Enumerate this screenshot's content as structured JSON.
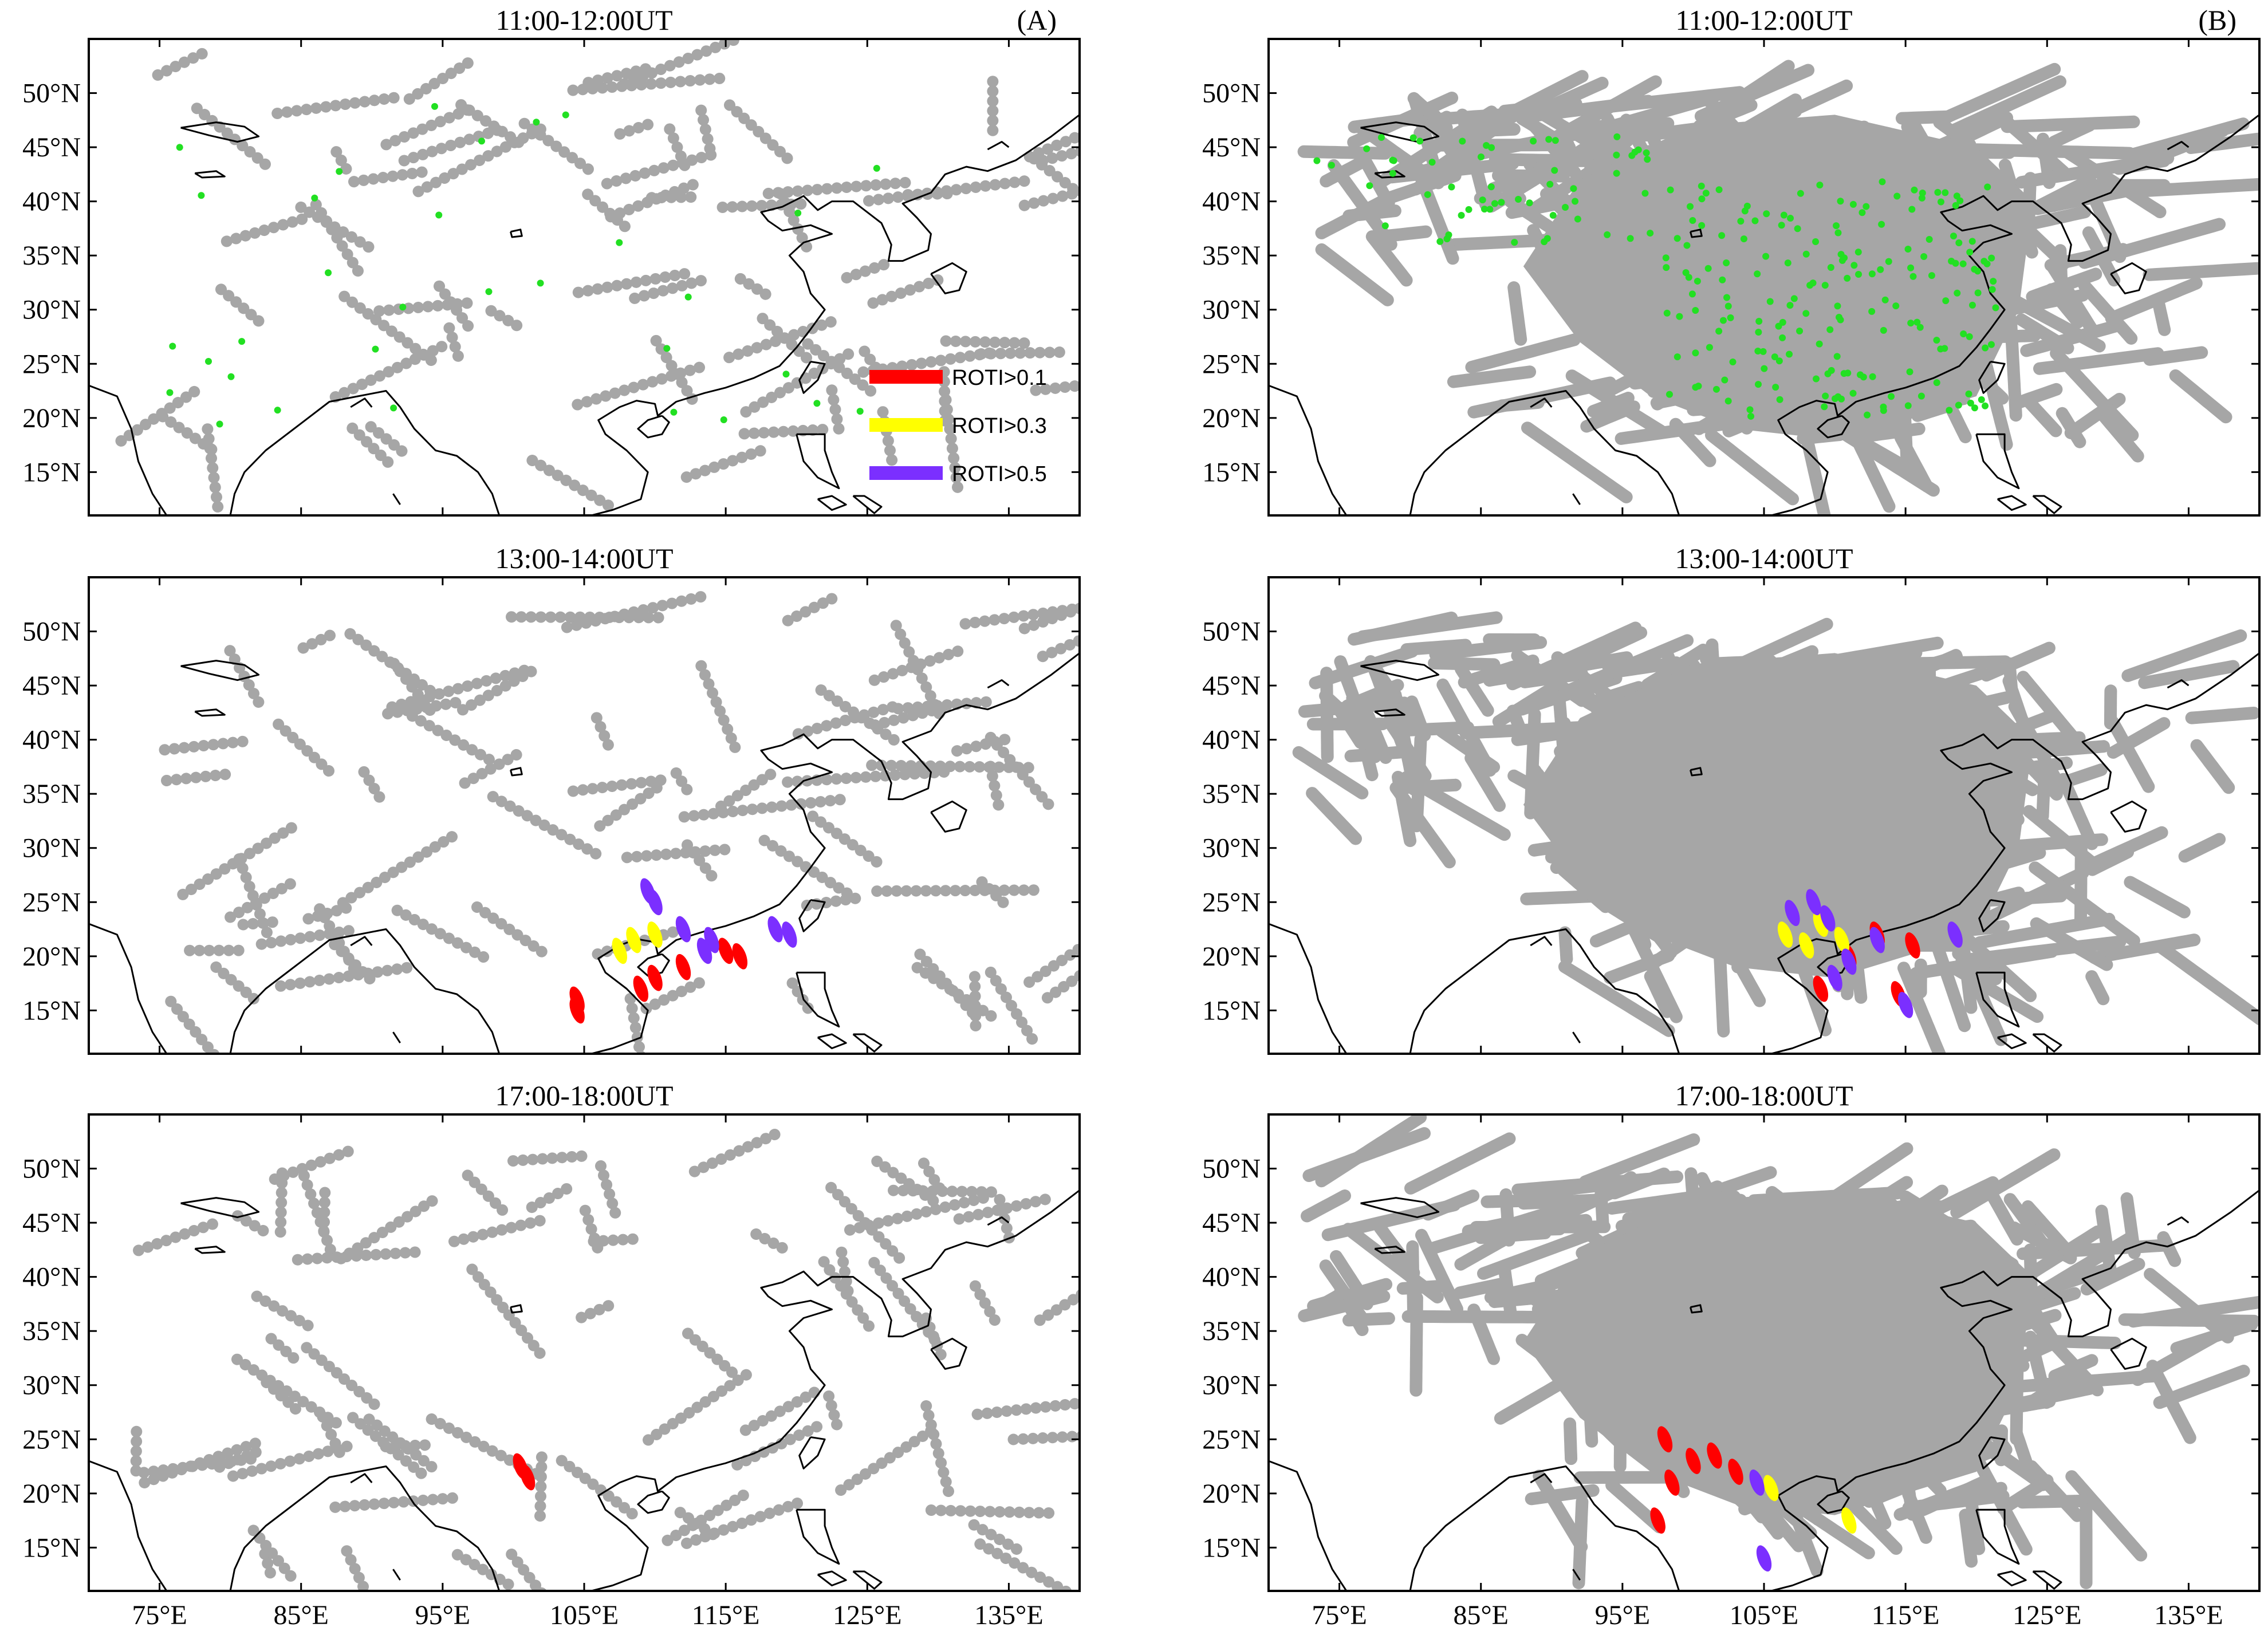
{
  "figure": {
    "panels": [
      {
        "id": "A-1",
        "title": "11:00-12:00UT",
        "letter": "(A)",
        "density": 1,
        "station_count": 32,
        "roti": []
      },
      {
        "id": "B-1",
        "title": "11:00-12:00UT",
        "letter": "(B)",
        "density": 4,
        "station_count": 240,
        "roti": []
      },
      {
        "id": "A-2",
        "title": "13:00-14:00UT",
        "letter": "",
        "density": 1,
        "station_count": 0,
        "roti": [
          {
            "level": "0.1",
            "lon": 104.5,
            "lat": 16
          },
          {
            "level": "0.1",
            "lon": 104.5,
            "lat": 15
          },
          {
            "level": "0.1",
            "lon": 109,
            "lat": 17
          },
          {
            "level": "0.1",
            "lon": 110,
            "lat": 18
          },
          {
            "level": "0.1",
            "lon": 112,
            "lat": 19
          },
          {
            "level": "0.1",
            "lon": 115,
            "lat": 20.5
          },
          {
            "level": "0.1",
            "lon": 116,
            "lat": 20
          },
          {
            "level": "0.3",
            "lon": 107.5,
            "lat": 20.5
          },
          {
            "level": "0.3",
            "lon": 108.5,
            "lat": 21.5
          },
          {
            "level": "0.3",
            "lon": 110,
            "lat": 22
          },
          {
            "level": "0.5",
            "lon": 109.5,
            "lat": 26
          },
          {
            "level": "0.5",
            "lon": 110,
            "lat": 25
          },
          {
            "level": "0.5",
            "lon": 112,
            "lat": 22.5
          },
          {
            "level": "0.5",
            "lon": 114,
            "lat": 21.5
          },
          {
            "level": "0.5",
            "lon": 113.5,
            "lat": 20.5
          },
          {
            "level": "0.5",
            "lon": 118.5,
            "lat": 22.5
          },
          {
            "level": "0.5",
            "lon": 119.5,
            "lat": 22
          }
        ]
      },
      {
        "id": "B-2",
        "title": "13:00-14:00UT",
        "letter": "",
        "density": 4,
        "station_count": 0,
        "roti": [
          {
            "level": "0.1",
            "lon": 114.5,
            "lat": 16.5
          },
          {
            "level": "0.1",
            "lon": 115.5,
            "lat": 21
          },
          {
            "level": "0.1",
            "lon": 109,
            "lat": 17
          },
          {
            "level": "0.1",
            "lon": 111,
            "lat": 20
          },
          {
            "level": "0.1",
            "lon": 113,
            "lat": 22
          },
          {
            "level": "0.3",
            "lon": 106.5,
            "lat": 22
          },
          {
            "level": "0.3",
            "lon": 108,
            "lat": 21
          },
          {
            "level": "0.3",
            "lon": 109,
            "lat": 23
          },
          {
            "level": "0.3",
            "lon": 110.5,
            "lat": 21.5
          },
          {
            "level": "0.5",
            "lon": 107,
            "lat": 24
          },
          {
            "level": "0.5",
            "lon": 108.5,
            "lat": 25
          },
          {
            "level": "0.5",
            "lon": 109.5,
            "lat": 23.5
          },
          {
            "level": "0.5",
            "lon": 110,
            "lat": 18
          },
          {
            "level": "0.5",
            "lon": 111,
            "lat": 19.5
          },
          {
            "level": "0.5",
            "lon": 113,
            "lat": 21.5
          },
          {
            "level": "0.5",
            "lon": 118.5,
            "lat": 22
          },
          {
            "level": "0.5",
            "lon": 115,
            "lat": 15.5
          }
        ]
      },
      {
        "id": "A-3",
        "title": "17:00-18:00UT",
        "letter": "",
        "density": 1,
        "station_count": 0,
        "roti": [
          {
            "level": "0.1",
            "lon": 100.5,
            "lat": 22.5
          },
          {
            "level": "0.1",
            "lon": 101,
            "lat": 21.5
          }
        ]
      },
      {
        "id": "B-3",
        "title": "17:00-18:00UT",
        "letter": "",
        "density": 4,
        "station_count": 0,
        "roti": [
          {
            "level": "0.1",
            "lon": 98,
            "lat": 25
          },
          {
            "level": "0.1",
            "lon": 98.5,
            "lat": 21
          },
          {
            "level": "0.1",
            "lon": 100,
            "lat": 23
          },
          {
            "level": "0.1",
            "lon": 101.5,
            "lat": 23.5
          },
          {
            "level": "0.1",
            "lon": 103,
            "lat": 22
          },
          {
            "level": "0.1",
            "lon": 97.5,
            "lat": 17.5
          },
          {
            "level": "0.3",
            "lon": 105.5,
            "lat": 20.5
          },
          {
            "level": "0.3",
            "lon": 111,
            "lat": 17.5
          },
          {
            "level": "0.5",
            "lon": 105,
            "lat": 14
          },
          {
            "level": "0.5",
            "lon": 104.5,
            "lat": 21
          }
        ]
      }
    ],
    "legend": {
      "items": [
        {
          "label": "ROTI>0.1",
          "color": "#ff0000"
        },
        {
          "label": "ROTI>0.3",
          "color": "#ffff00"
        },
        {
          "label": "ROTI>0.5",
          "color": "#7b2fff"
        }
      ]
    },
    "axes": {
      "x_ticks": [
        "75°E",
        "85°E",
        "95°E",
        "105°E",
        "115°E",
        "125°E",
        "135°E"
      ],
      "x_values": [
        75,
        85,
        95,
        105,
        115,
        125,
        135
      ],
      "y_ticks": [
        "15°N",
        "20°N",
        "25°N",
        "30°N",
        "35°N",
        "40°N",
        "45°N",
        "50°N"
      ],
      "y_values": [
        15,
        20,
        25,
        30,
        35,
        40,
        45,
        50
      ],
      "lon_range": [
        70,
        140
      ],
      "lat_range": [
        11,
        55
      ]
    },
    "colors": {
      "track": "#a6a6a6",
      "station": "#22e022"
    }
  }
}
